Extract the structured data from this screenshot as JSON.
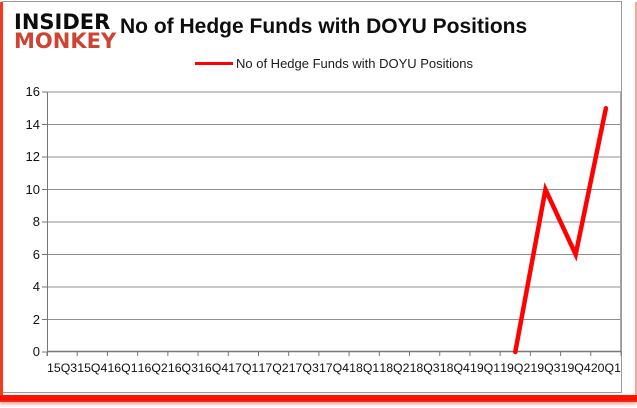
{
  "logo": {
    "line1": "INSIDER",
    "line2": "MONKEY"
  },
  "title": "No of Hedge Funds with DOYU Positions",
  "legend": {
    "label": "No of Hedge Funds with DOYU Positions"
  },
  "colors": {
    "line": "#fe0100",
    "logo_red": "#cd4433",
    "accent_red": "#ff1400",
    "grid": "#8f8f8f",
    "axis": "#767676",
    "plot_right_border": "#a8a8a8",
    "text": "#111111"
  },
  "chart_data": {
    "type": "line",
    "title": "No of Hedge Funds with DOYU Positions",
    "categories": [
      "15Q3",
      "15Q4",
      "16Q1",
      "16Q2",
      "16Q3",
      "16Q4",
      "17Q1",
      "17Q2",
      "17Q3",
      "17Q4",
      "18Q1",
      "18Q2",
      "18Q3",
      "18Q4",
      "19Q1",
      "19Q2",
      "19Q3",
      "19Q4",
      "20Q1"
    ],
    "series": [
      {
        "name": "No of Hedge Funds with DOYU Positions",
        "values": [
          null,
          null,
          null,
          null,
          null,
          null,
          null,
          null,
          null,
          null,
          null,
          null,
          null,
          null,
          null,
          0,
          10,
          6,
          15
        ]
      }
    ],
    "ylim": [
      0,
      16
    ],
    "ytick_step": 2,
    "yticks": [
      0,
      2,
      4,
      6,
      8,
      10,
      12,
      14,
      16
    ],
    "grid": true,
    "legend_position": "top-center"
  }
}
